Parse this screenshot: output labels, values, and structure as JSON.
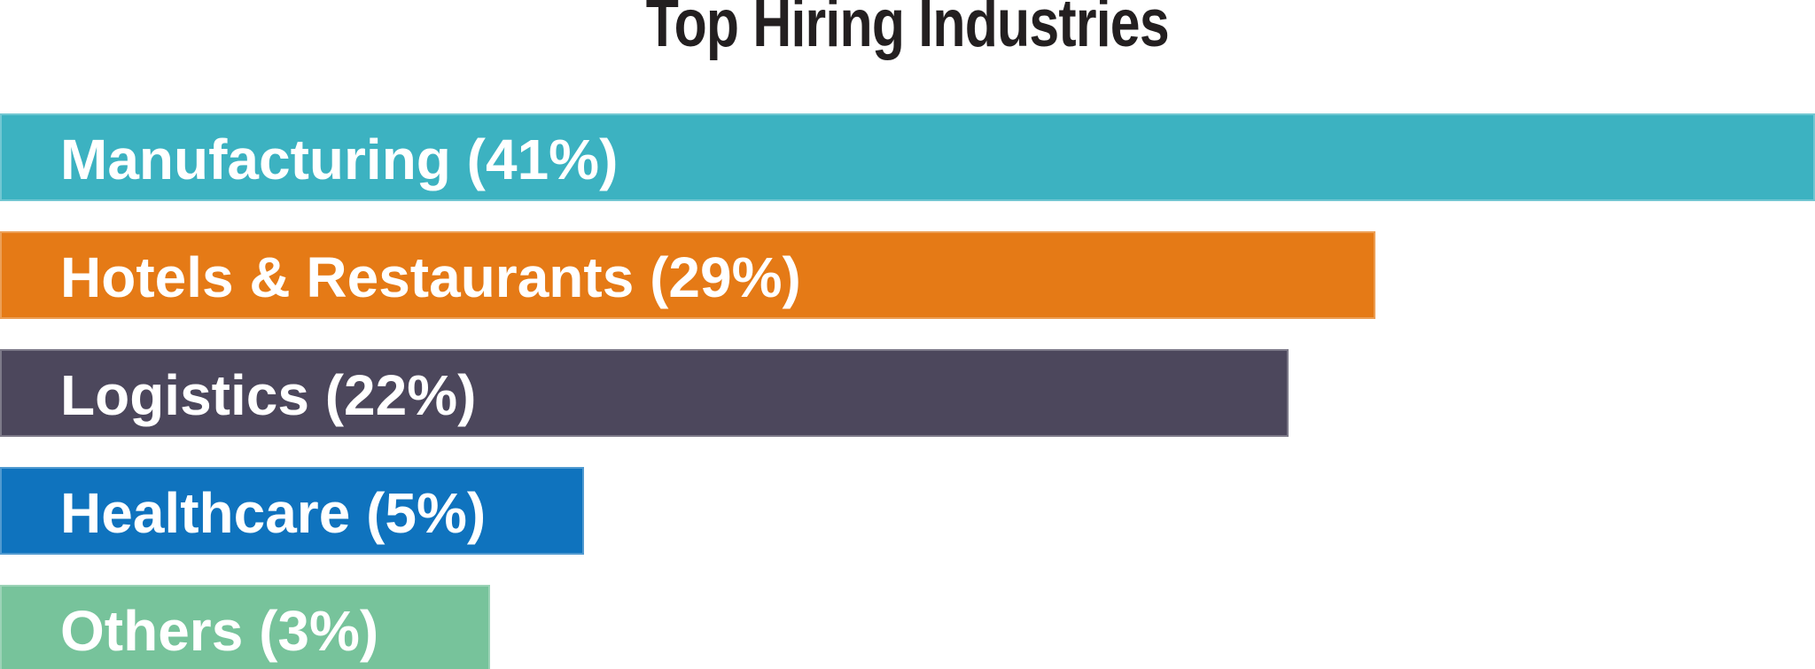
{
  "page": {
    "background_color": "#FFFFFF",
    "title_text_color": "#231F20",
    "bar_label_text_color": "#FFFFFF"
  },
  "chart_data": {
    "type": "bar",
    "orientation": "horizontal",
    "title": "Top Hiring Industries",
    "categories": [
      "Manufacturing",
      "Hotels & Restaurants",
      "Logistics",
      "Healthcare",
      "Others"
    ],
    "values": [
      41,
      29,
      22,
      5,
      3
    ],
    "value_unit": "%",
    "value_labels_inside_bars": true,
    "axes_visible": false,
    "grid": false,
    "legend": "none",
    "xlabel": "",
    "ylabel": "",
    "bars": [
      {
        "category": "Manufacturing",
        "value": 41,
        "label": "Manufacturing (41%)",
        "color": "#3CB2C1",
        "display_width_pct": 100
      },
      {
        "category": "Hotels & Restaurants",
        "value": 29,
        "label": "Hotels & Restaurants (29%)",
        "color": "#E57A16",
        "display_width_pct": 75.8
      },
      {
        "category": "Logistics",
        "value": 22,
        "label": "Logistics (22%)",
        "color": "#4C475C",
        "display_width_pct": 71.0
      },
      {
        "category": "Healthcare",
        "value": 5,
        "label": "Healthcare (5%)",
        "color": "#0F73BE",
        "display_width_pct": 32.2
      },
      {
        "category": "Others",
        "value": 3,
        "label": "Others (3%)",
        "color": "#77C39B",
        "display_width_pct": 27.0
      }
    ]
  }
}
